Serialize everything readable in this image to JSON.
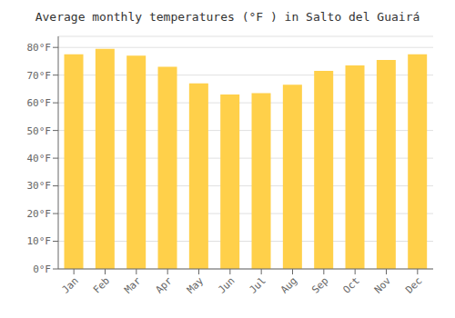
{
  "chart_data": {
    "type": "bar",
    "title": "Average monthly temperatures (°F ) in Salto del Guairá",
    "categories": [
      "Jan",
      "Feb",
      "Mar",
      "Apr",
      "May",
      "Jun",
      "Jul",
      "Aug",
      "Sep",
      "Oct",
      "Nov",
      "Dec"
    ],
    "values": [
      77.5,
      79.5,
      77.0,
      73.0,
      67.0,
      63.0,
      63.5,
      66.5,
      71.5,
      73.5,
      75.5,
      77.5
    ],
    "color": "#FFD04A",
    "ylim": [
      0,
      84
    ],
    "yticks": [
      {
        "value": 0,
        "label": "0°F"
      },
      {
        "value": 10,
        "label": "10°F"
      },
      {
        "value": 20,
        "label": "20°F"
      },
      {
        "value": 30,
        "label": "30°F"
      },
      {
        "value": 40,
        "label": "40°F"
      },
      {
        "value": 50,
        "label": "50°F"
      },
      {
        "value": 60,
        "label": "60°F"
      },
      {
        "value": 70,
        "label": "70°F"
      },
      {
        "value": 80,
        "label": "80°F"
      }
    ],
    "grid": true
  }
}
